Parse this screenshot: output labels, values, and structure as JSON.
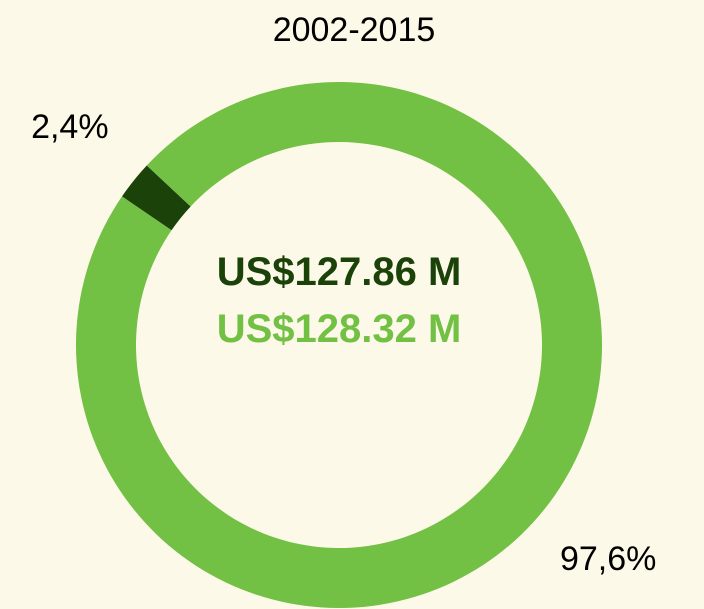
{
  "chart_data": {
    "type": "donut",
    "title": "2002-2015",
    "values": [
      2.4,
      97.6
    ],
    "value_labels": [
      "2,4%",
      "97,6%"
    ],
    "colors": [
      "#1b4209",
      "#72c044"
    ],
    "annotations": [
      {
        "text": "US$127.86 M",
        "color": "#1b4209"
      },
      {
        "text": "US$128.32 M",
        "color": "#72c044"
      }
    ]
  }
}
